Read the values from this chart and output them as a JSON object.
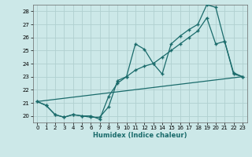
{
  "xlabel": "Humidex (Indice chaleur)",
  "background_color": "#cce8e8",
  "grid_color": "#b0d0d0",
  "line_color": "#1a6b6b",
  "marker_color": "#1a6b6b",
  "xlim": [
    -0.5,
    23.5
  ],
  "ylim": [
    19.5,
    28.5
  ],
  "xticks": [
    0,
    1,
    2,
    3,
    4,
    5,
    6,
    7,
    8,
    9,
    10,
    11,
    12,
    13,
    14,
    15,
    16,
    17,
    18,
    19,
    20,
    21,
    22,
    23
  ],
  "yticks": [
    20,
    21,
    22,
    23,
    24,
    25,
    26,
    27,
    28
  ],
  "series1_x": [
    0,
    1,
    2,
    3,
    4,
    5,
    6,
    7,
    8,
    9,
    10,
    11,
    12,
    13,
    14,
    15,
    16,
    17,
    18,
    19,
    20,
    21,
    22,
    23
  ],
  "series1_y": [
    21.1,
    20.8,
    20.1,
    19.9,
    20.1,
    20.0,
    19.9,
    19.9,
    20.7,
    22.7,
    23.0,
    25.5,
    25.1,
    24.0,
    23.2,
    25.5,
    26.1,
    26.6,
    27.0,
    28.5,
    28.3,
    25.7,
    23.2,
    23.0
  ],
  "series2_x": [
    0,
    1,
    2,
    3,
    4,
    5,
    6,
    7,
    8,
    9,
    10,
    11,
    12,
    13,
    14,
    15,
    16,
    17,
    18,
    19,
    20,
    21,
    22,
    23
  ],
  "series2_y": [
    21.1,
    20.8,
    20.1,
    19.9,
    20.1,
    20.0,
    20.0,
    19.75,
    21.5,
    22.5,
    23.0,
    23.5,
    23.8,
    24.0,
    24.5,
    25.0,
    25.5,
    26.0,
    26.5,
    27.5,
    25.5,
    25.7,
    23.3,
    23.0
  ],
  "series3_x": [
    0,
    23
  ],
  "series3_y": [
    21.1,
    23.0
  ]
}
